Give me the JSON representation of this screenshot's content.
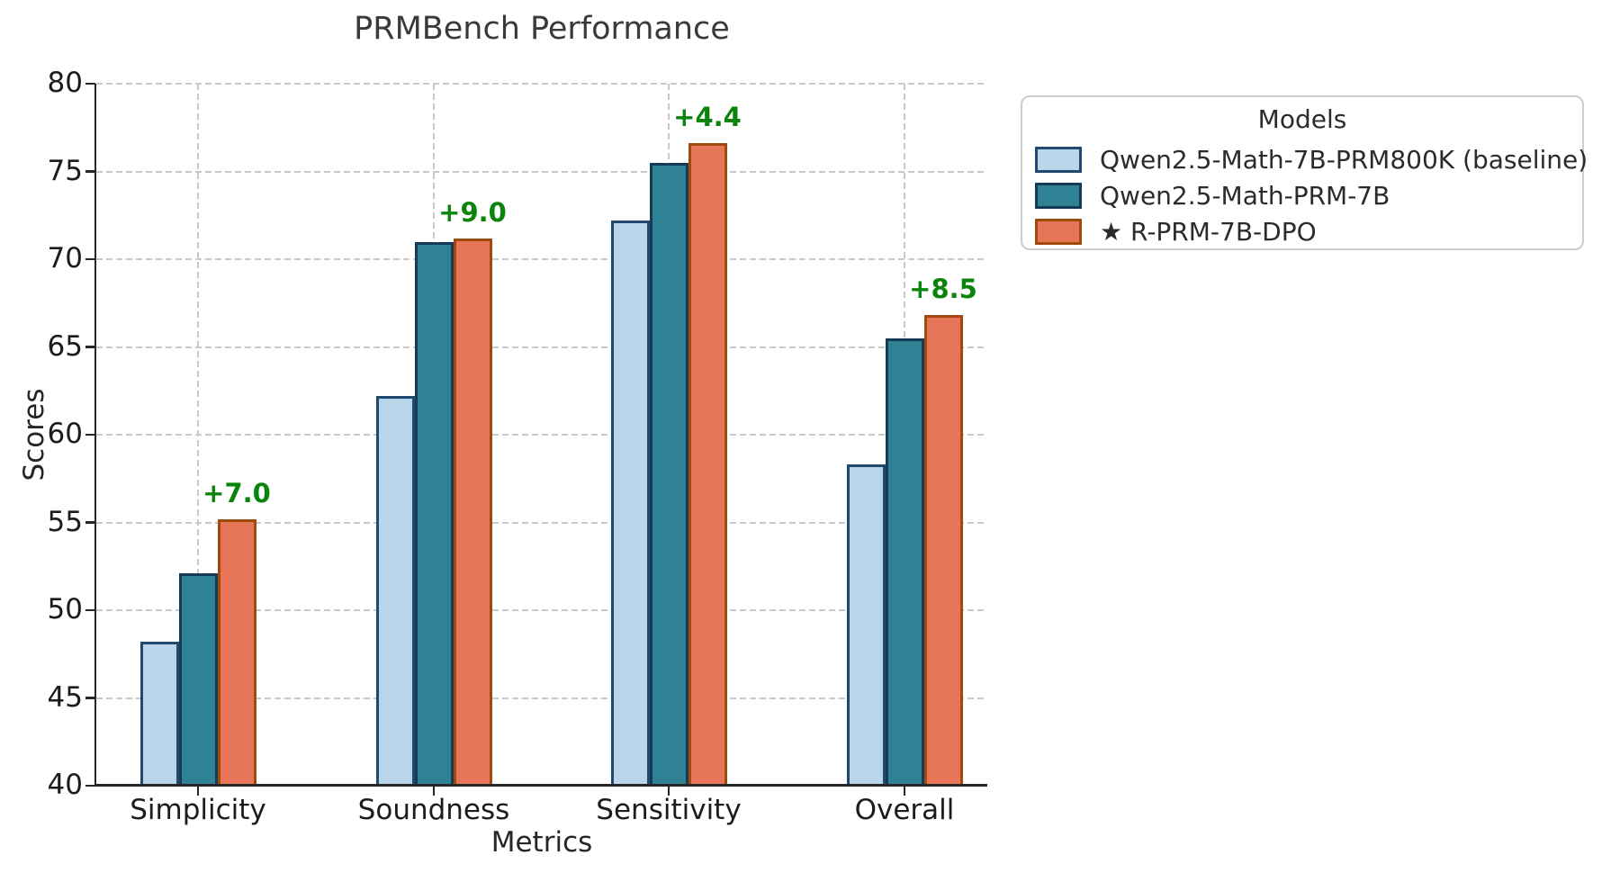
{
  "chart_data": {
    "type": "bar",
    "title": "PRMBench Performance",
    "xlabel": "Metrics",
    "ylabel": "Scores",
    "ylim": [
      40,
      80
    ],
    "yticks": [
      40,
      45,
      50,
      55,
      60,
      65,
      70,
      75,
      80
    ],
    "grid": true,
    "grid_style": "dashed",
    "categories": [
      "Simplicity",
      "Soundness",
      "Sensitivity",
      "Overall"
    ],
    "series": [
      {
        "name": "Qwen2.5-Math-7B-PRM800K (baseline)",
        "fill_color": "#B9D5EA",
        "edge_color": "#21496F",
        "values": [
          48.2,
          62.2,
          72.2,
          58.3
        ]
      },
      {
        "name": "Qwen2.5-Math-PRM-7B",
        "fill_color": "#2F8294",
        "edge_color": "#173A57",
        "values": [
          52.1,
          71.0,
          75.5,
          65.5
        ]
      },
      {
        "name": "★ R-PRM-7B-DPO",
        "fill_color": "#E77659",
        "edge_color": "#A04A0E",
        "values": [
          55.2,
          71.2,
          76.6,
          66.8
        ]
      }
    ],
    "annotations": {
      "color": "#0B840B",
      "labels": [
        "+7.0",
        "+9.0",
        "+4.4",
        "+8.5"
      ],
      "attached_to_series": "★ R-PRM-7B-DPO"
    },
    "legend": {
      "title": "Models",
      "position": "outside-upper-right"
    }
  }
}
